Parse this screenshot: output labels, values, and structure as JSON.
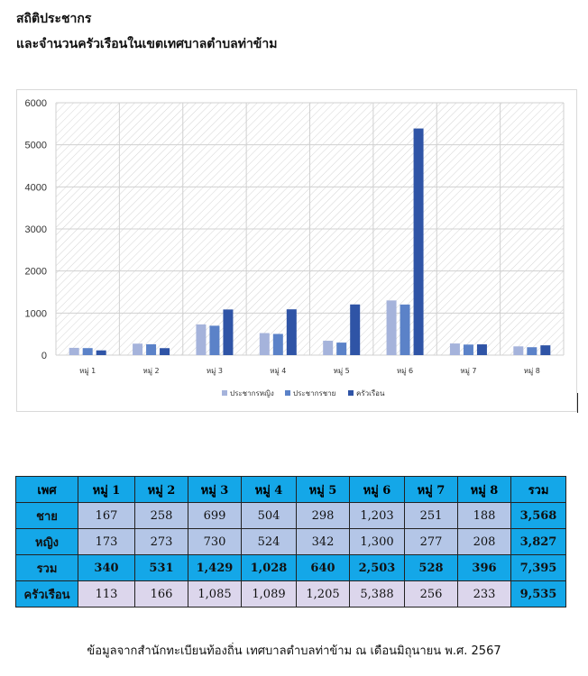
{
  "title_line1": "สถิติประชากร",
  "title_line2": "และจำนวนครัวเรือนในเขตเทศบาลตำบลท่าข้าม",
  "chart_data": {
    "type": "bar",
    "categories": [
      "หมู่ 1",
      "หมู่ 2",
      "หมู่ 3",
      "หมู่ 4",
      "หมู่ 5",
      "หมู่ 6",
      "หมู่ 7",
      "หมู่ 8"
    ],
    "series": [
      {
        "name": "ประชากรหญิง",
        "values": [
          173,
          273,
          730,
          524,
          342,
          1300,
          277,
          208
        ],
        "color": "#a5b3db"
      },
      {
        "name": "ประชากรชาย",
        "values": [
          167,
          258,
          699,
          504,
          298,
          1203,
          251,
          188
        ],
        "color": "#5b82c8"
      },
      {
        "name": "ครัวเรือน",
        "values": [
          113,
          166,
          1085,
          1089,
          1205,
          5388,
          256,
          233
        ],
        "color": "#2f54a6"
      }
    ],
    "ylim": [
      0,
      6000
    ],
    "yticks": [
      0,
      1000,
      2000,
      3000,
      4000,
      5000,
      6000
    ],
    "grid": true,
    "legend": "bottom"
  },
  "table": {
    "headers": [
      "เพศ",
      "หมู่ 1",
      "หมู่ 2",
      "หมู่ 3",
      "หมู่ 4",
      "หมู่ 5",
      "หมู่ 6",
      "หมู่ 7",
      "หมู่ 8",
      "รวม"
    ],
    "rows": [
      {
        "label": "ชาย",
        "cls": "c-male",
        "cells": [
          "167",
          "258",
          "699",
          "504",
          "298",
          "1,203",
          "251",
          "188",
          "3,568"
        ]
      },
      {
        "label": "หญิง",
        "cls": "c-female",
        "cells": [
          "173",
          "273",
          "730",
          "524",
          "342",
          "1,300",
          "277",
          "208",
          "3,827"
        ]
      },
      {
        "label": "รวม",
        "cls": "c-total",
        "cells": [
          "340",
          "531",
          "1,429",
          "1,028",
          "640",
          "2,503",
          "528",
          "396",
          "7,395"
        ]
      },
      {
        "label": "ครัวเรือน",
        "cls": "c-house",
        "cells": [
          "113",
          "166",
          "1,085",
          "1,089",
          "1,205",
          "5,388",
          "256",
          "233",
          "9,535"
        ]
      }
    ]
  },
  "source": "ข้อมูลจากสำนักทะเบียนท้องถิ่น เทศบาลตำบลท่าข้าม ณ เดือนมิถุนายน พ.ศ. 2567"
}
